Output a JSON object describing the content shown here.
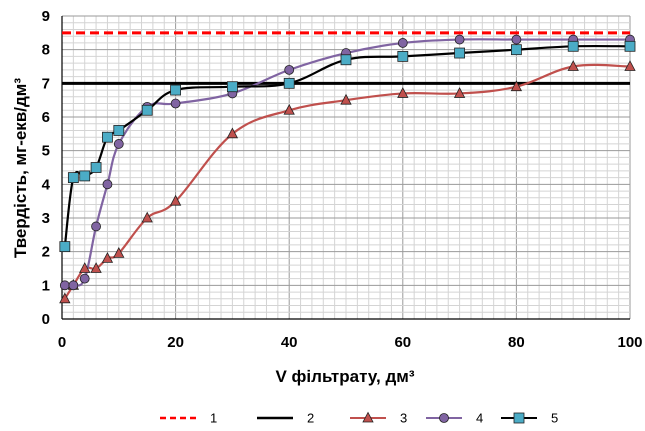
{
  "chart_data": {
    "type": "line",
    "title": "",
    "xlabel": "V фільтрату, дм³",
    "ylabel": "Твердість,  мг-екв/дм³",
    "xlim": [
      0,
      100
    ],
    "ylim": [
      0,
      9
    ],
    "x_ticks": [
      "0",
      "20",
      "40",
      "60",
      "80",
      "100"
    ],
    "y_ticks": [
      "0",
      "1",
      "2",
      "3",
      "4",
      "5",
      "6",
      "7",
      "8",
      "9"
    ],
    "grid": true,
    "legend_position": "bottom",
    "series": [
      {
        "name": "1",
        "style": "dashed",
        "color": "#ff0000",
        "marker": "none",
        "x": [
          0,
          100
        ],
        "y": [
          8.5,
          8.5
        ]
      },
      {
        "name": "2",
        "style": "solid",
        "color": "#000000",
        "marker": "none",
        "x": [
          0,
          100
        ],
        "y": [
          7.0,
          7.0
        ]
      },
      {
        "name": "3",
        "style": "solid",
        "color": "#c0504d",
        "marker": "triangle",
        "marker_fill": "#c0504d",
        "x": [
          0.5,
          2,
          4,
          6,
          8,
          10,
          15,
          20,
          30,
          40,
          50,
          60,
          70,
          80,
          90,
          100
        ],
        "y": [
          0.6,
          1.0,
          1.5,
          1.5,
          1.8,
          1.95,
          3.0,
          3.5,
          5.5,
          6.2,
          6.5,
          6.7,
          6.7,
          6.9,
          7.5,
          7.5
        ]
      },
      {
        "name": "4",
        "style": "solid",
        "color": "#8064a2",
        "marker": "circle",
        "marker_fill": "#8064a2",
        "x": [
          0.5,
          2,
          4,
          6,
          8,
          10,
          15,
          20,
          30,
          40,
          50,
          60,
          70,
          80,
          90,
          100
        ],
        "y": [
          1.0,
          1.0,
          1.2,
          2.75,
          4.0,
          5.2,
          6.3,
          6.4,
          6.7,
          7.4,
          7.9,
          8.2,
          8.3,
          8.3,
          8.3,
          8.3
        ]
      },
      {
        "name": "5",
        "style": "solid",
        "color": "#000000",
        "marker": "square",
        "marker_fill": "#4bacc6",
        "x": [
          0.5,
          2,
          4,
          6,
          8,
          10,
          15,
          20,
          30,
          40,
          50,
          60,
          70,
          80,
          90,
          100
        ],
        "y": [
          2.15,
          4.2,
          4.25,
          4.5,
          5.4,
          5.6,
          6.2,
          6.8,
          6.9,
          7.0,
          7.7,
          7.8,
          7.9,
          8.0,
          8.1,
          8.1
        ]
      }
    ]
  }
}
